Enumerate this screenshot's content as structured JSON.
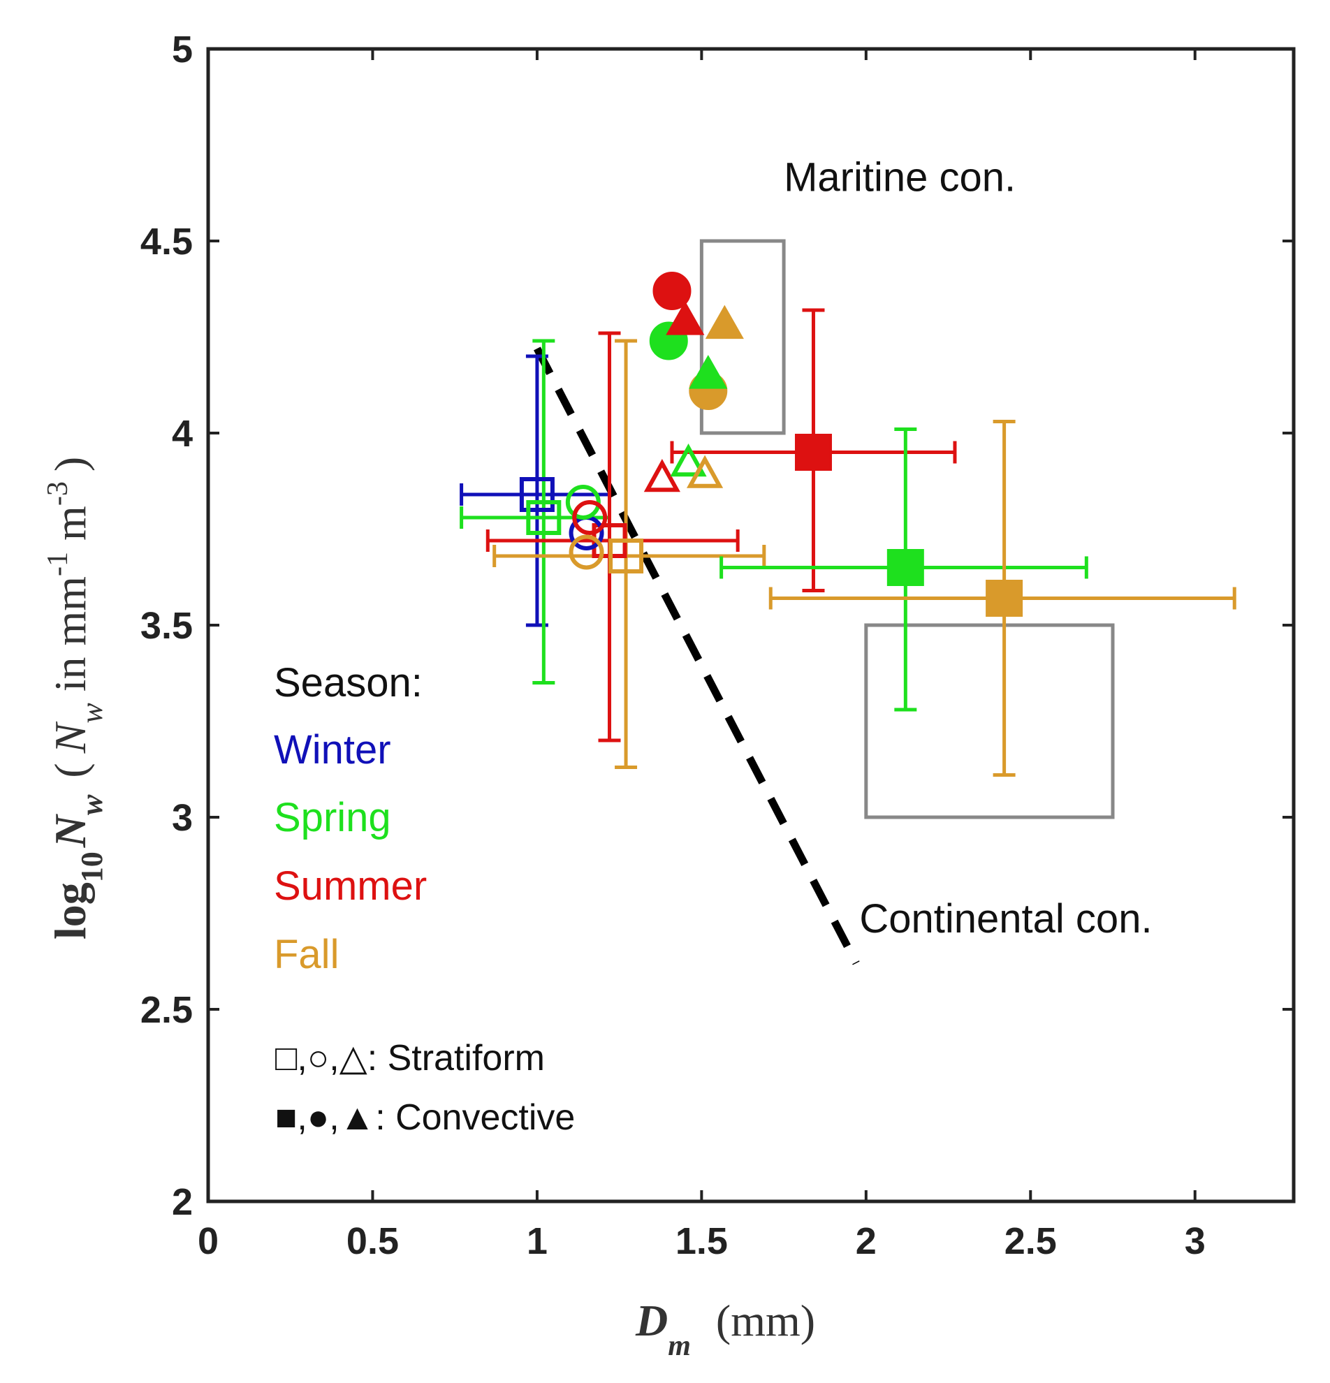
{
  "chart_data": {
    "type": "scatter",
    "xlabel": {
      "symbol": "D",
      "sub": "m",
      "unit": "(mm)"
    },
    "ylabel": {
      "prefix": "log",
      "prefix_sub": "10",
      "symbol": "N",
      "symbol_sub": "w",
      "paren_open": "(",
      "paren_symbol": "N",
      "paren_symbol_sub": "w",
      "unit_text": " in mm",
      "exp1": "-1",
      "unit_m": " m",
      "exp2": "-3",
      "paren_close": ")"
    },
    "xlim": [
      0,
      3.3
    ],
    "ylim": [
      2,
      5
    ],
    "xticks": [
      0,
      0.5,
      1,
      1.5,
      2,
      2.5,
      3
    ],
    "xtick_labels": [
      "0",
      "0.5",
      "1",
      "1.5",
      "2",
      "2.5",
      "3"
    ],
    "yticks": [
      2,
      2.5,
      3,
      3.5,
      4,
      4.5,
      5
    ],
    "ytick_labels": [
      "2",
      "2.5",
      "3",
      "3.5",
      "4",
      "4.5",
      "5"
    ],
    "colors": {
      "Winter": "#1010b8",
      "Spring": "#1ee01e",
      "Summer": "#dd1111",
      "Fall": "#d99a2b",
      "frame": "#222222",
      "box": "#888888"
    },
    "annotations": [
      {
        "text": "Maritine con.",
        "x": 1.75,
        "y": 4.63
      },
      {
        "text": "Continental con.",
        "x": 1.98,
        "y": 2.7
      }
    ],
    "regions": [
      {
        "name": "Maritime",
        "x": [
          1.5,
          1.75
        ],
        "y": [
          4.0,
          4.5
        ]
      },
      {
        "name": "Continental",
        "x": [
          2.0,
          2.75
        ],
        "y": [
          3.0,
          3.5
        ]
      }
    ],
    "separator_line": {
      "x": [
        1.0,
        1.97
      ],
      "y": [
        4.22,
        2.62
      ],
      "style": "dashed"
    },
    "legend": {
      "title": "Season:",
      "entries": [
        "Winter",
        "Spring",
        "Summer",
        "Fall"
      ],
      "stratiform": {
        "symbols": "□,○,△",
        "label": ": Stratiform"
      },
      "convective": {
        "symbols": "■,●,▲",
        "label": ": Convective"
      }
    },
    "points": [
      {
        "season": "Winter",
        "rain": "Stratiform",
        "marker": "square",
        "x": 1.0,
        "y": 3.84,
        "xerr": [
          0.77,
          1.22
        ],
        "yerr": [
          3.5,
          4.2
        ]
      },
      {
        "season": "Spring",
        "rain": "Stratiform",
        "marker": "square",
        "x": 1.02,
        "y": 3.78,
        "xerr": [
          0.77,
          1.22
        ],
        "yerr": [
          3.35,
          4.24
        ]
      },
      {
        "season": "Summer",
        "rain": "Stratiform",
        "marker": "square",
        "x": 1.22,
        "y": 3.72,
        "xerr": [
          0.85,
          1.61
        ],
        "yerr": [
          3.2,
          4.26
        ]
      },
      {
        "season": "Fall",
        "rain": "Stratiform",
        "marker": "square",
        "x": 1.27,
        "y": 3.68,
        "xerr": [
          0.87,
          1.69
        ],
        "yerr": [
          3.13,
          4.24
        ]
      },
      {
        "season": "Winter",
        "rain": "Stratiform",
        "marker": "circle",
        "x": 1.15,
        "y": 3.74
      },
      {
        "season": "Spring",
        "rain": "Stratiform",
        "marker": "circle",
        "x": 1.14,
        "y": 3.82
      },
      {
        "season": "Summer",
        "rain": "Stratiform",
        "marker": "circle",
        "x": 1.16,
        "y": 3.78
      },
      {
        "season": "Fall",
        "rain": "Stratiform",
        "marker": "circle",
        "x": 1.15,
        "y": 3.69
      },
      {
        "season": "Summer",
        "rain": "Stratiform",
        "marker": "triangle",
        "x": 1.38,
        "y": 3.88
      },
      {
        "season": "Spring",
        "rain": "Stratiform",
        "marker": "triangle",
        "x": 1.46,
        "y": 3.92
      },
      {
        "season": "Fall",
        "rain": "Stratiform",
        "marker": "triangle",
        "x": 1.51,
        "y": 3.89
      },
      {
        "season": "Summer",
        "rain": "Convective",
        "marker": "square",
        "x": 1.84,
        "y": 3.95,
        "xerr": [
          1.41,
          2.27
        ],
        "yerr": [
          3.59,
          4.32
        ]
      },
      {
        "season": "Spring",
        "rain": "Convective",
        "marker": "square",
        "x": 2.12,
        "y": 3.65,
        "xerr": [
          1.56,
          2.67
        ],
        "yerr": [
          3.28,
          4.01
        ]
      },
      {
        "season": "Fall",
        "rain": "Convective",
        "marker": "square",
        "x": 2.42,
        "y": 3.57,
        "xerr": [
          1.71,
          3.12
        ],
        "yerr": [
          3.11,
          4.03
        ]
      },
      {
        "season": "Summer",
        "rain": "Convective",
        "marker": "circle",
        "x": 1.41,
        "y": 4.37
      },
      {
        "season": "Spring",
        "rain": "Convective",
        "marker": "circle",
        "x": 1.4,
        "y": 4.24
      },
      {
        "season": "Fall",
        "rain": "Convective",
        "marker": "circle",
        "x": 1.52,
        "y": 4.11
      },
      {
        "season": "Summer",
        "rain": "Convective",
        "marker": "triangle",
        "x": 1.45,
        "y": 4.29
      },
      {
        "season": "Fall",
        "rain": "Convective",
        "marker": "triangle",
        "x": 1.57,
        "y": 4.28
      },
      {
        "season": "Spring",
        "rain": "Convective",
        "marker": "triangle",
        "x": 1.52,
        "y": 4.15
      }
    ]
  }
}
